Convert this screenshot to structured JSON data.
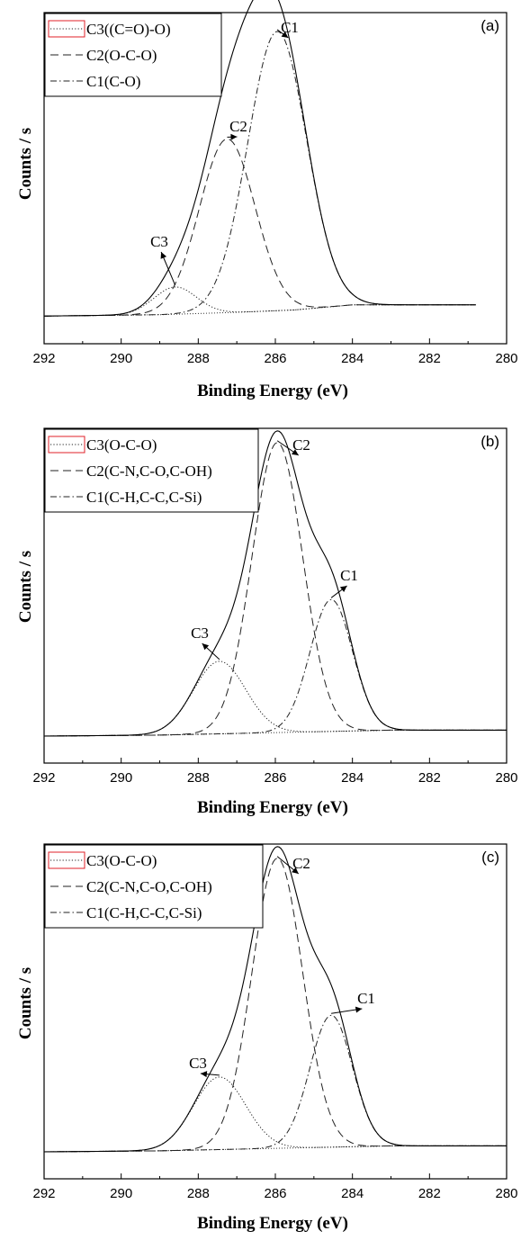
{
  "chart_data": [
    {
      "type": "line",
      "panel_label": "(a)",
      "xlabel": "Binding Energy (eV)",
      "ylabel": "Counts / s",
      "xlim": [
        292,
        280
      ],
      "x_reversed": true,
      "xticks": [
        292,
        290,
        288,
        286,
        284,
        282,
        280
      ],
      "y_tick_labels_shown": false,
      "legend_position": "top-left",
      "legend": [
        {
          "label": "C3((C=O)-O)",
          "style": "dotted"
        },
        {
          "label": "C2(O-C-O)",
          "style": "dashed"
        },
        {
          "label": "C1(C-O)",
          "style": "dash-dot"
        }
      ],
      "curve_range": [
        292,
        280.8
      ],
      "background": [
        [
          292,
          0.2
        ],
        [
          289,
          0.6
        ],
        [
          287,
          1.3
        ],
        [
          285.5,
          2.0
        ],
        [
          284,
          3.5
        ],
        [
          280.8,
          3.5
        ]
      ],
      "peaks": [
        {
          "name": "C3",
          "center": 288.6,
          "height": 8,
          "fwhm": 1.3,
          "style": "dotted"
        },
        {
          "name": "C2",
          "center": 287.25,
          "height": 51,
          "fwhm": 1.7,
          "style": "dashed"
        },
        {
          "name": "C1",
          "center": 285.95,
          "height": 82,
          "fwhm": 1.8,
          "style": "dash-dot"
        }
      ],
      "annotations": [
        {
          "text": "C1",
          "x": 285.95
        },
        {
          "text": "C2",
          "x": 287.25
        },
        {
          "text": "C3",
          "x": 288.6
        }
      ]
    },
    {
      "type": "line",
      "panel_label": "(b)",
      "xlabel": "Binding Energy (eV)",
      "ylabel": "Counts / s",
      "xlim": [
        292,
        280
      ],
      "x_reversed": true,
      "xticks": [
        292,
        290,
        288,
        286,
        284,
        282,
        280
      ],
      "y_tick_labels_shown": false,
      "legend_position": "top-left",
      "legend": [
        {
          "label": "C3(O-C-O)",
          "style": "dotted"
        },
        {
          "label": "C2(C-N,C-O,C-OH)",
          "style": "dashed"
        },
        {
          "label": "C1(C-H,C-C,C-Si)",
          "style": "dash-dot"
        }
      ],
      "curve_range": [
        292,
        280
      ],
      "background": [
        [
          292,
          0.0
        ],
        [
          289,
          0.3
        ],
        [
          287,
          0.8
        ],
        [
          285,
          1.3
        ],
        [
          283,
          1.8
        ],
        [
          280,
          1.8
        ]
      ],
      "peaks": [
        {
          "name": "C3",
          "center": 287.45,
          "height": 22,
          "fwhm": 1.6,
          "style": "dotted"
        },
        {
          "name": "C2",
          "center": 285.95,
          "height": 88,
          "fwhm": 1.55,
          "style": "dashed"
        },
        {
          "name": "C1",
          "center": 284.55,
          "height": 40,
          "fwhm": 1.3,
          "style": "dash-dot"
        }
      ],
      "annotations": [
        {
          "text": "C2",
          "x": 285.95
        },
        {
          "text": "C1",
          "x": 284.55
        },
        {
          "text": "C3",
          "x": 287.45
        }
      ]
    },
    {
      "type": "line",
      "panel_label": "(c)",
      "xlabel": "Binding Energy (eV)",
      "ylabel": "Counts / s",
      "xlim": [
        292,
        280
      ],
      "x_reversed": true,
      "xticks": [
        292,
        290,
        288,
        286,
        284,
        282,
        280
      ],
      "y_tick_labels_shown": false,
      "legend_position": "top-left",
      "legend": [
        {
          "label": "C3(O-C-O)",
          "style": "dotted"
        },
        {
          "label": "C2(C-N,C-O,C-OH)",
          "style": "dashed"
        },
        {
          "label": "C1(C-H,C-C,C-Si)",
          "style": "dash-dot"
        }
      ],
      "curve_range": [
        292,
        280
      ],
      "background": [
        [
          292,
          0.0
        ],
        [
          289,
          0.3
        ],
        [
          287,
          0.8
        ],
        [
          285,
          1.3
        ],
        [
          283,
          1.8
        ],
        [
          280,
          1.8
        ]
      ],
      "peaks": [
        {
          "name": "C3",
          "center": 287.45,
          "height": 22,
          "fwhm": 1.6,
          "style": "dotted"
        },
        {
          "name": "C2",
          "center": 285.95,
          "height": 88,
          "fwhm": 1.55,
          "style": "dashed"
        },
        {
          "name": "C1",
          "center": 284.55,
          "height": 40,
          "fwhm": 1.3,
          "style": "dash-dot"
        }
      ],
      "annotations": [
        {
          "text": "C2",
          "x": 285.95
        },
        {
          "text": "C1",
          "x": 284.55
        },
        {
          "text": "C3",
          "x": 287.45
        }
      ]
    }
  ]
}
